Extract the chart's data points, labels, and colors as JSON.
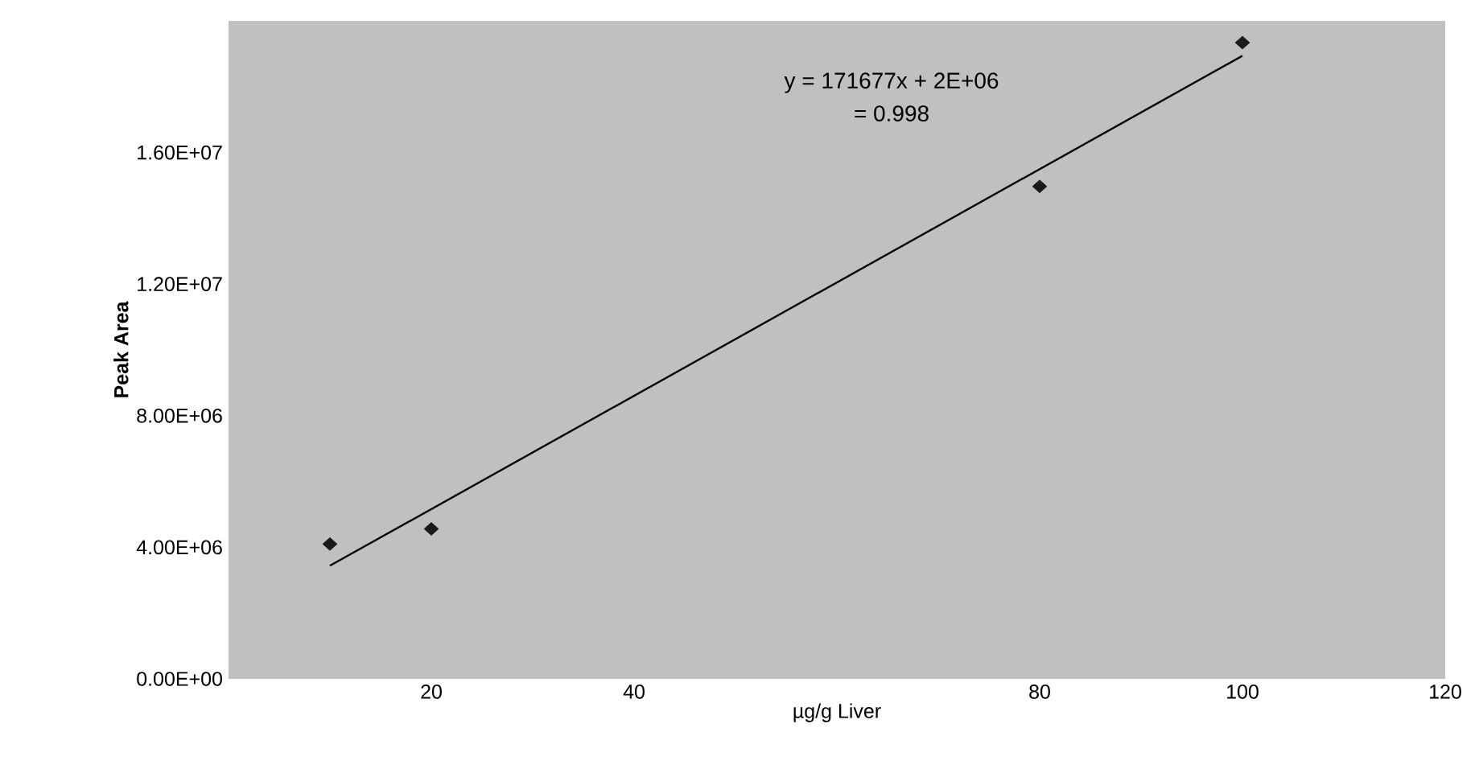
{
  "chart_data": {
    "type": "scatter",
    "xlabel": "µg/g Liver",
    "ylabel": "Peak Area",
    "annotations": [
      "y = 171677x + 2E+06",
      "= 0.998"
    ],
    "series": [
      {
        "color": "#1a1a1a",
        "marker": "diamond",
        "x": [
          10,
          20,
          80,
          100
        ],
        "values": [
          4100000,
          4560000,
          14970000,
          19340000
        ]
      },
      {
        "type": "line",
        "color": "#000000",
        "marker": "none",
        "line_style": "solid",
        "x": [
          10,
          100
        ],
        "values": [
          3440000,
          18940000
        ]
      }
    ],
    "xlim": [
      0,
      120
    ],
    "xticks": [
      20,
      40,
      80,
      100,
      120
    ],
    "ylim": [
      0,
      20000000
    ],
    "yticks": [
      {
        "value": 0,
        "label": "0.00E+00"
      },
      {
        "value": 4000000,
        "label": "4.00E+06"
      },
      {
        "value": 8000000,
        "label": "8.00E+06"
      },
      {
        "value": 12000000,
        "label": "1.20E+07"
      },
      {
        "value": 16000000,
        "label": "1.60E+07"
      }
    ],
    "grid": false
  }
}
